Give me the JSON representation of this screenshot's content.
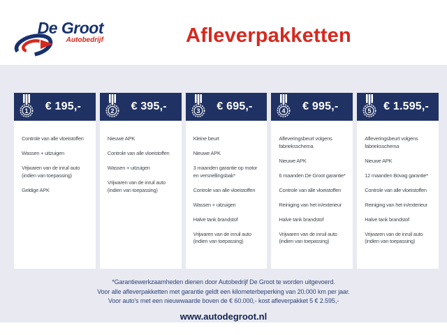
{
  "brand": {
    "name": "De Groot",
    "subtitle": "Autobedrijf"
  },
  "page_title": "Afleverpakketten",
  "packages": [
    {
      "number": "1",
      "price": "€ 195,-",
      "items": [
        "Controle van alle vloeistoffen",
        "Wassen + uitzuigen",
        "Vrijwaren van de inruil auto\n(indien van toepassing)",
        "Geldige APK"
      ]
    },
    {
      "number": "2",
      "price": "€ 395,-",
      "items": [
        "Nieuwe APK",
        "Controle van alle vloeistoffen",
        "Wassen + uitzuigen",
        "Vrijwaren van de inruil auto\n(indien van toepassing)"
      ]
    },
    {
      "number": "3",
      "price": "€ 695,-",
      "items": [
        "Kleine beurt",
        "Nieuwe APK",
        "3 maanden garantie op motor\nen versnellingsbak*",
        "Controle van alle vloeistoffen",
        "Wassen + uitzuigen",
        "Halve tank brandstof",
        "Vrijwaren van de inruil auto\n(indien van toepassing)"
      ]
    },
    {
      "number": "4",
      "price": "€ 995,-",
      "items": [
        "Afleveringsbeurt volgens\nfabrieksschema",
        "Nieuwe APK",
        "6 maanden De Groot garantie*",
        "Controle van alle vloeistoffen",
        "Reiniging van het in/exterieur",
        "Halve tank brandstof",
        "Vrijwaren van de inruil auto\n(indien van toepassing)"
      ]
    },
    {
      "number": "5",
      "price": "€ 1.595,-",
      "items": [
        "Afleveringsbeurt volgens\nfabrieksschema",
        "Nieuwe APK",
        "12 maanden Bovag garantie*",
        "Controle van alle vloeistoffen",
        "Reiniging van het in/exterieur",
        "Halve tank brandstof",
        "Vrijwaren van de inruil auto\n(indien van toepassing)"
      ]
    }
  ],
  "footnotes": [
    "*Garantiewerkzaamheden dienen door Autobedrijf De Groot te worden uitgevoerd.",
    "Voor alle afleverpakketten met garantie geldt een kilometerbeperking van 20.000 km per jaar.",
    "Voor auto's met een nieuwwaarde boven de € 60.000,- kost afleverpakket 5 € 2.595,-"
  ],
  "website": "www.autodegroot.nl",
  "colors": {
    "navy_header": "#203264",
    "brand_navy": "#17316e",
    "accent_red": "#d7281e",
    "band_background": "#e9eaf1",
    "item_text": "#474a50",
    "footnote_text": "#2d4077"
  }
}
